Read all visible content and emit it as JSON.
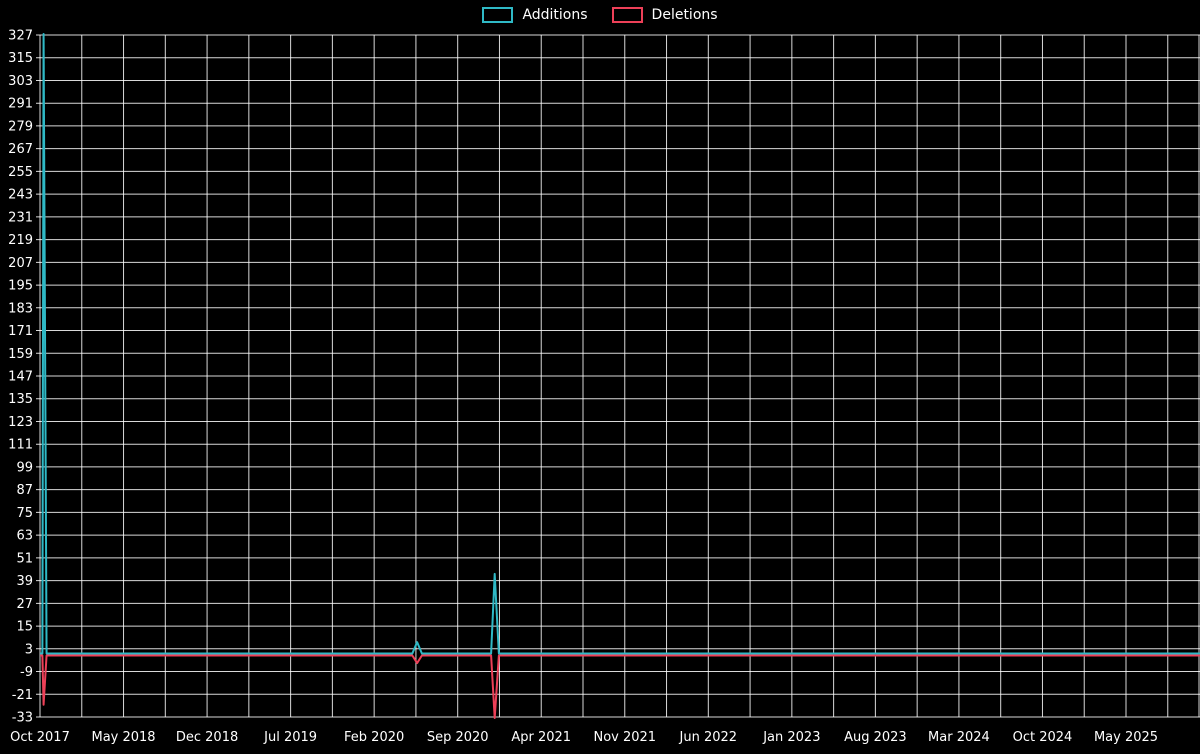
{
  "chart_data": {
    "type": "line",
    "title": "",
    "legend_position": "top-center",
    "background_color": "#000000",
    "grid": true,
    "grid_color": "rgba(255,255,255,0.85)",
    "text_color": "#ffffff",
    "ylim": [
      -33,
      327
    ],
    "y_tick_step": 12,
    "y_ticks": [
      327,
      315,
      303,
      291,
      279,
      267,
      255,
      243,
      231,
      219,
      207,
      195,
      183,
      171,
      159,
      147,
      135,
      123,
      111,
      99,
      87,
      75,
      63,
      51,
      39,
      27,
      15,
      3,
      -9,
      -21,
      -33
    ],
    "x_ticks": [
      {
        "label": "Oct 2017",
        "m": 0
      },
      {
        "label": "May 2018",
        "m": 7
      },
      {
        "label": "Dec 2018",
        "m": 14
      },
      {
        "label": "Jul 2019",
        "m": 21
      },
      {
        "label": "Feb 2020",
        "m": 28
      },
      {
        "label": "Sep 2020",
        "m": 35
      },
      {
        "label": "Apr 2021",
        "m": 42
      },
      {
        "label": "Nov 2021",
        "m": 49
      },
      {
        "label": "Jun 2022",
        "m": 56
      },
      {
        "label": "Jan 2023",
        "m": 63
      },
      {
        "label": "Aug 2023",
        "m": 70
      },
      {
        "label": "Mar 2024",
        "m": 77
      },
      {
        "label": "Oct 2024",
        "m": 84
      },
      {
        "label": "May 2025",
        "m": 91
      }
    ],
    "x_minor_step_months": 3.5,
    "x_total_months": 97.2,
    "series": [
      {
        "name": "Additions",
        "color": "#2fb9c6",
        "points": [
          [
            0,
            0
          ],
          [
            0.2,
            0
          ],
          [
            0.3,
            327
          ],
          [
            0.55,
            0
          ],
          [
            31.2,
            0
          ],
          [
            31.6,
            6
          ],
          [
            32.0,
            0
          ],
          [
            37.8,
            0
          ],
          [
            38.1,
            42
          ],
          [
            38.45,
            0
          ],
          [
            97.2,
            0
          ]
        ]
      },
      {
        "name": "Deletions",
        "color": "#ee4058",
        "points": [
          [
            0,
            0
          ],
          [
            0.2,
            0
          ],
          [
            0.3,
            -26
          ],
          [
            0.55,
            0
          ],
          [
            31.2,
            0
          ],
          [
            31.6,
            -4
          ],
          [
            32.0,
            0
          ],
          [
            37.8,
            0
          ],
          [
            38.1,
            -33
          ],
          [
            38.45,
            0
          ],
          [
            97.2,
            0
          ]
        ]
      }
    ]
  }
}
